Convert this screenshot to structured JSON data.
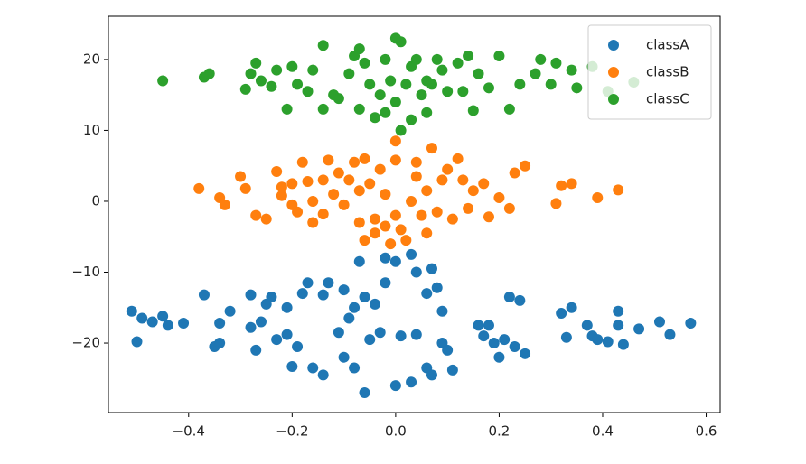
{
  "chart_data": {
    "type": "scatter",
    "legend": "upper right",
    "xlim": [
      -0.555,
      0.627
    ],
    "ylim": [
      -29.8,
      26.1
    ],
    "xticks": [
      {
        "value": -0.4,
        "label": "−0.4"
      },
      {
        "value": -0.2,
        "label": "−0.2"
      },
      {
        "value": 0,
        "label": "0.0"
      },
      0.2,
      0.4,
      0.6
    ],
    "yticks": [
      {
        "value": -20,
        "label": "−20"
      },
      {
        "value": -10,
        "label": "−10"
      },
      0,
      10,
      20
    ],
    "series": [
      {
        "name": "classA",
        "color": "#1f77b4",
        "x": [
          -0.51,
          -0.5,
          -0.49,
          -0.47,
          -0.45,
          -0.44,
          -0.41,
          -0.37,
          -0.35,
          -0.34,
          -0.34,
          -0.32,
          -0.28,
          -0.28,
          -0.27,
          -0.26,
          -0.25,
          -0.24,
          -0.23,
          -0.21,
          -0.21,
          -0.2,
          -0.19,
          -0.18,
          -0.17,
          -0.16,
          -0.14,
          -0.14,
          -0.13,
          -0.11,
          -0.1,
          -0.1,
          -0.09,
          -0.08,
          -0.08,
          -0.07,
          -0.06,
          -0.06,
          -0.05,
          -0.04,
          -0.03,
          -0.02,
          -0.02,
          0.0,
          0.01,
          0.0,
          0.03,
          0.03,
          0.04,
          0.04,
          0.06,
          0.06,
          0.07,
          0.07,
          0.08,
          0.09,
          0.09,
          0.1,
          0.11,
          0.16,
          0.17,
          0.18,
          0.19,
          0.2,
          0.21,
          0.22,
          0.23,
          0.24,
          0.25,
          0.32,
          0.33,
          0.34,
          0.37,
          0.38,
          0.39,
          0.41,
          0.43,
          0.43,
          0.44,
          0.47,
          0.51,
          0.53,
          0.57
        ],
        "values": [
          -15.5,
          -19.8,
          -16.5,
          -17,
          -16.2,
          -17.5,
          -17.2,
          -13.2,
          -20.5,
          -20,
          -17.2,
          -15.5,
          -17.8,
          -13.2,
          -21,
          -17,
          -14.5,
          -13.5,
          -19.5,
          -18.8,
          -15,
          -23.3,
          -20.5,
          -13,
          -11.5,
          -23.5,
          -24.5,
          -13.2,
          -11.5,
          -18.5,
          -22,
          -12.5,
          -16.5,
          -23.5,
          -15,
          -8.5,
          -27,
          -13.5,
          -19.5,
          -14.5,
          -18.5,
          -8,
          -11.5,
          -26,
          -19,
          -8.5,
          -25.5,
          -7.5,
          -18.8,
          -10,
          -23.5,
          -13,
          -24.5,
          -9.5,
          -12.2,
          -20,
          -15.5,
          -21,
          -23.8,
          -17.5,
          -19,
          -17.5,
          -20,
          -22,
          -19.5,
          -13.5,
          -20.5,
          -14,
          -21.5,
          -15.8,
          -19.2,
          -15,
          -17.5,
          -19,
          -19.5,
          -19.8,
          -15.5,
          -17.5,
          -20.2,
          -18,
          -17,
          -18.8,
          -17.2
        ]
      },
      {
        "name": "classB",
        "color": "#ff7f0e",
        "x": [
          -0.38,
          -0.34,
          -0.33,
          -0.3,
          -0.29,
          -0.27,
          -0.25,
          -0.23,
          -0.22,
          -0.22,
          -0.2,
          -0.2,
          -0.19,
          -0.18,
          -0.17,
          -0.16,
          -0.16,
          -0.14,
          -0.14,
          -0.13,
          -0.12,
          -0.11,
          -0.1,
          -0.09,
          -0.08,
          -0.07,
          -0.07,
          -0.06,
          -0.06,
          -0.05,
          -0.04,
          -0.04,
          -0.03,
          -0.02,
          -0.02,
          -0.01,
          0.0,
          0.0,
          0.0,
          0.01,
          0.02,
          0.03,
          0.04,
          0.04,
          0.05,
          0.06,
          0.06,
          0.07,
          0.08,
          0.09,
          0.1,
          0.11,
          0.12,
          0.13,
          0.14,
          0.15,
          0.17,
          0.18,
          0.2,
          0.22,
          0.23,
          0.25,
          0.31,
          0.32,
          0.34,
          0.39,
          0.43
        ],
        "values": [
          1.8,
          0.5,
          -0.5,
          3.5,
          1.8,
          -2,
          -2.5,
          4.2,
          0.8,
          2,
          -0.5,
          2.5,
          -1.5,
          5.5,
          2.8,
          0,
          -3,
          3,
          -1.8,
          5.8,
          1,
          4,
          -0.5,
          3,
          5.5,
          1.5,
          -3,
          6,
          -5.5,
          2.5,
          -2.5,
          -4.5,
          4.5,
          1,
          -3.5,
          -6,
          8.5,
          5.8,
          -2,
          -4,
          -5.5,
          0,
          3.5,
          5.5,
          -2,
          1.5,
          -4.5,
          7.5,
          -1.5,
          3,
          4.5,
          -2.5,
          6,
          3,
          -1,
          1.5,
          2.5,
          -2.2,
          0.5,
          -1,
          4,
          5,
          -0.3,
          2.2,
          2.5,
          0.5,
          1.6
        ]
      },
      {
        "name": "classC",
        "color": "#2ca02c",
        "x": [
          -0.45,
          -0.37,
          -0.36,
          -0.29,
          -0.28,
          -0.27,
          -0.26,
          -0.24,
          -0.23,
          -0.21,
          -0.2,
          -0.19,
          -0.17,
          -0.16,
          -0.14,
          -0.14,
          -0.12,
          -0.11,
          -0.09,
          -0.08,
          -0.07,
          -0.07,
          -0.06,
          -0.05,
          -0.04,
          -0.03,
          -0.02,
          -0.02,
          -0.01,
          0.0,
          0.0,
          0.01,
          0.01,
          0.02,
          0.03,
          0.03,
          0.04,
          0.05,
          0.06,
          0.06,
          0.07,
          0.08,
          0.09,
          0.1,
          0.12,
          0.13,
          0.14,
          0.15,
          0.16,
          0.18,
          0.2,
          0.22,
          0.24,
          0.27,
          0.28,
          0.3,
          0.31,
          0.34,
          0.35,
          0.38,
          0.41,
          0.46
        ],
        "values": [
          17,
          17.5,
          18,
          15.8,
          18,
          19.5,
          17,
          16.2,
          18.5,
          13,
          19,
          16.5,
          15.5,
          18.5,
          22,
          13,
          15,
          14.5,
          18,
          20.5,
          21.5,
          13,
          19.5,
          16.5,
          11.8,
          15,
          20,
          12.5,
          17,
          23,
          14,
          22.5,
          10,
          16.5,
          19,
          11.5,
          20,
          15,
          17,
          12.5,
          16.5,
          20,
          18.5,
          15.5,
          19.5,
          15.5,
          20.5,
          12.8,
          18,
          16,
          20.5,
          13,
          16.5,
          18,
          20,
          16.5,
          19.5,
          18.5,
          16,
          19,
          15.5,
          16.8
        ]
      }
    ]
  }
}
